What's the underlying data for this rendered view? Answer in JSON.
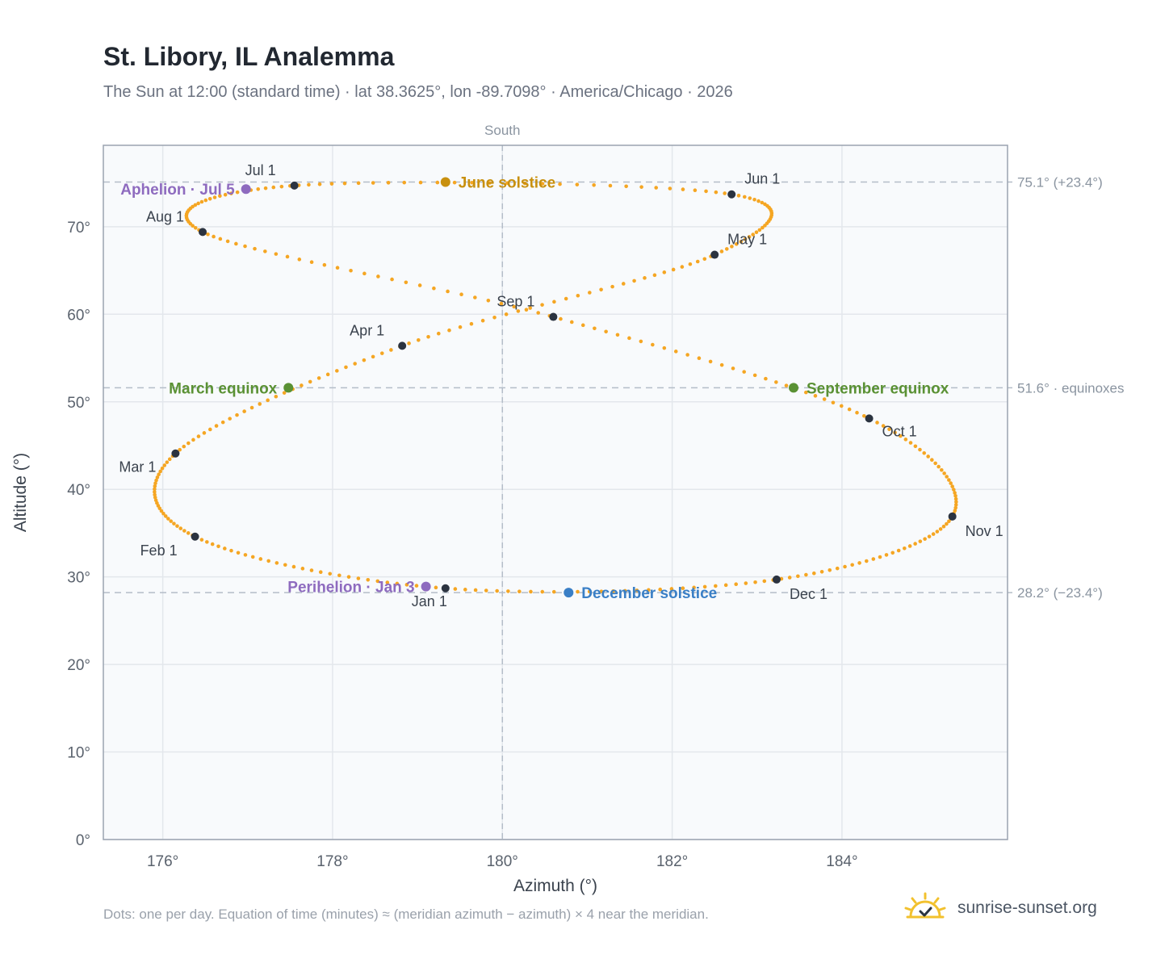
{
  "header": {
    "title": "St. Libory, IL Analemma",
    "subtitle": "The Sun at 12:00 (standard time) · lat 38.3625°, lon -89.7098° · America/Chicago · 2026"
  },
  "footer": {
    "note": "Dots: one per day. Equation of time (minutes) ≈ (meridian azimuth − azimuth) × 4 near the meridian.",
    "brand": "sunrise-sunset.org"
  },
  "colors": {
    "daily_dots": "#f5a623",
    "month_markers": "#2b3340",
    "june_solstice": "#c8900f",
    "december_solstice": "#3a7fc6",
    "equinox": "#5a9134",
    "aphelion_perihelion": "#8e6bbf",
    "plot_background": "#f8fafc"
  },
  "chart_data": {
    "type": "scatter",
    "title": "St. Libory, IL Analemma",
    "xlabel": "Azimuth (°)",
    "ylabel": "Altitude (°)",
    "xlim": [
      175.3,
      185.95
    ],
    "ylim": [
      0,
      79.3
    ],
    "x_ticks": [
      176,
      178,
      180,
      182,
      184
    ],
    "x_tick_labels": [
      "176°",
      "178°",
      "180°",
      "182°",
      "184°"
    ],
    "y_ticks": [
      0,
      10,
      20,
      30,
      40,
      50,
      60,
      70
    ],
    "y_tick_labels": [
      "0°",
      "10°",
      "20°",
      "30°",
      "40°",
      "50°",
      "60°",
      "70°"
    ],
    "grid": true,
    "meridian": {
      "x": 180,
      "label": "South"
    },
    "reference_lines": [
      {
        "y": 75.1,
        "label": "75.1° (+23.4°)"
      },
      {
        "y": 51.6,
        "label": "51.6° · equinoxes"
      },
      {
        "y": 28.2,
        "label": "28.2° (−23.4°)"
      }
    ],
    "month_points": [
      {
        "label": "Jan 1",
        "x": 179.33,
        "y": 28.7
      },
      {
        "label": "Feb 1",
        "x": 176.38,
        "y": 34.6
      },
      {
        "label": "Mar 1",
        "x": 176.15,
        "y": 44.1
      },
      {
        "label": "Apr 1",
        "x": 178.82,
        "y": 56.4
      },
      {
        "label": "May 1",
        "x": 182.5,
        "y": 66.8
      },
      {
        "label": "Jun 1",
        "x": 182.7,
        "y": 73.7
      },
      {
        "label": "Jul 1",
        "x": 177.55,
        "y": 74.7
      },
      {
        "label": "Aug 1",
        "x": 176.47,
        "y": 69.4
      },
      {
        "label": "Sep 1",
        "x": 180.6,
        "y": 59.7
      },
      {
        "label": "Oct 1",
        "x": 184.32,
        "y": 48.1
      },
      {
        "label": "Nov 1",
        "x": 185.3,
        "y": 36.9
      },
      {
        "label": "Dec 1",
        "x": 183.23,
        "y": 29.7
      }
    ],
    "events": [
      {
        "label": "June solstice",
        "x": 179.33,
        "y": 75.1,
        "color_key": "june_solstice"
      },
      {
        "label": "December solstice",
        "x": 180.78,
        "y": 28.2,
        "color_key": "december_solstice"
      },
      {
        "label": "March equinox",
        "x": 177.48,
        "y": 51.6,
        "color_key": "equinox"
      },
      {
        "label": "September equinox",
        "x": 183.43,
        "y": 51.6,
        "color_key": "equinox"
      },
      {
        "label": "Aphelion · Jul 5",
        "x": 176.98,
        "y": 74.3,
        "color_key": "aphelion_perihelion"
      },
      {
        "label": "Perihelion · Jan 3",
        "x": 179.1,
        "y": 28.9,
        "color_key": "aphelion_perihelion"
      }
    ]
  }
}
